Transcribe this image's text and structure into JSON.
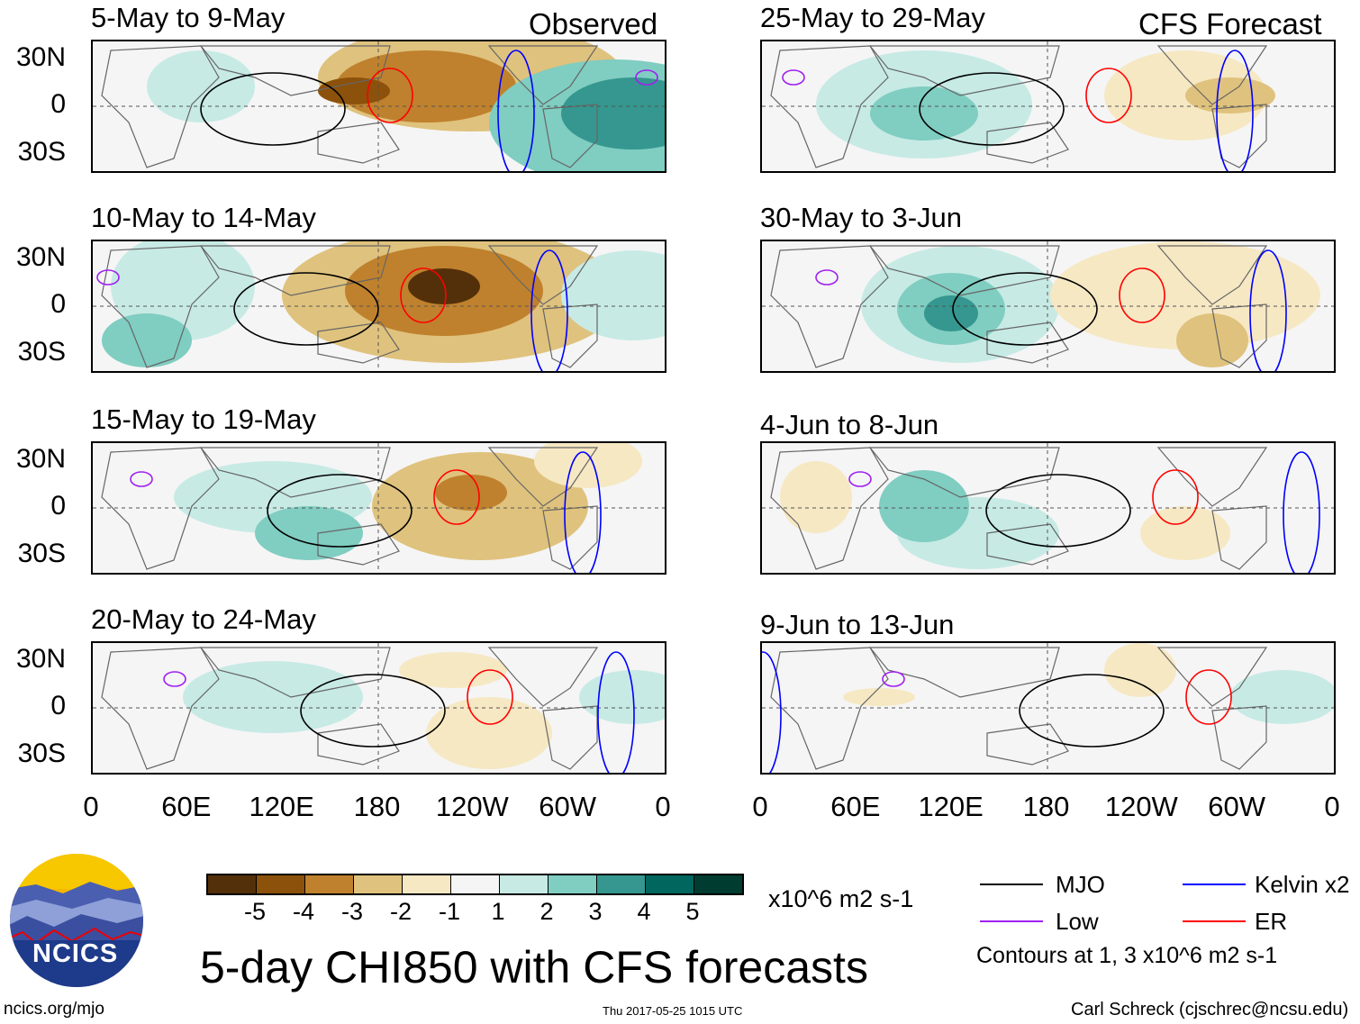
{
  "header": {
    "observed_label": "Observed",
    "forecast_label": "CFS Forecast"
  },
  "panels_left": [
    "5-May to 9-May",
    "10-May to 14-May",
    "15-May to 19-May",
    "20-May to 24-May"
  ],
  "panels_right": [
    "25-May to 29-May",
    "30-May to 3-Jun",
    "4-Jun to 8-Jun",
    "9-Jun to 13-Jun"
  ],
  "lat_labels": [
    "30N",
    "0",
    "30S"
  ],
  "lon_labels": [
    "0",
    "60E",
    "120E",
    "180",
    "120W",
    "60W",
    "0"
  ],
  "colorbar": {
    "labels": [
      "-5",
      "-4",
      "-3",
      "-2",
      "-1",
      "1",
      "2",
      "3",
      "4",
      "5"
    ],
    "colors": [
      "#54300a",
      "#8c510a",
      "#bf812d",
      "#dfc27d",
      "#f6e8c3",
      "#f5f5f5",
      "#c7eae5",
      "#80cdc1",
      "#35978f",
      "#01665e",
      "#003c30"
    ],
    "units": "x10^6 m2 s-1"
  },
  "legend": {
    "items": [
      {
        "label": "MJO",
        "color": "#000000"
      },
      {
        "label": "Kelvin x2",
        "color": "#0000ff"
      },
      {
        "label": "Low",
        "color": "#a020f0"
      },
      {
        "label": "ER",
        "color": "#ff0000"
      }
    ],
    "note": "Contours at 1, 3 x10^6 m2 s-1"
  },
  "title": "5-day CHI850 with CFS forecasts",
  "logo_text": "NCICS",
  "footer": {
    "url": "ncics.org/mjo",
    "timestamp": "Thu 2017-05-25 1015 UTC",
    "author": "Carl Schreck (cjschrec@ncsu.edu)"
  }
}
